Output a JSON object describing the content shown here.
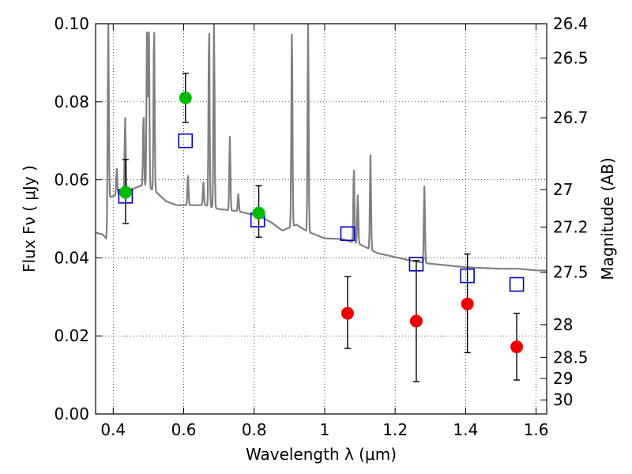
{
  "chart_data": {
    "type": "scatter",
    "xlabel": "Wavelength  λ (μm)",
    "ylabel": "Flux  Fν  ( μJy )",
    "y2label": "Magnitude (AB)",
    "xlim": [
      0.35,
      1.63
    ],
    "ylim": [
      0.0,
      0.1
    ],
    "grid": true,
    "x_ticks": [
      0.4,
      0.6,
      0.8,
      1.0,
      1.2,
      1.4,
      1.6
    ],
    "x_tick_labels": [
      "0.4",
      "0.6",
      "0.8",
      "1",
      "1.2",
      "1.4",
      "1.6"
    ],
    "y_ticks": [
      0.0,
      0.02,
      0.04,
      0.06,
      0.08,
      0.1
    ],
    "y_tick_labels": [
      "0.00",
      "0.02",
      "0.04",
      "0.06",
      "0.08",
      "0.10"
    ],
    "y2_ticks": [
      {
        "label": "26.4",
        "flux": 0.1
      },
      {
        "label": "26.5",
        "flux": 0.0912
      },
      {
        "label": "26.7",
        "flux": 0.0759
      },
      {
        "label": "27",
        "flux": 0.0575
      },
      {
        "label": "27.2",
        "flux": 0.0479
      },
      {
        "label": "27.5",
        "flux": 0.0363
      },
      {
        "label": "28",
        "flux": 0.0229
      },
      {
        "label": "28.5",
        "flux": 0.0145
      },
      {
        "label": "29",
        "flux": 0.0091
      },
      {
        "label": "30",
        "flux": 0.0036
      }
    ],
    "colors": {
      "spectrum": "#808080",
      "model_squares": "#0000cc",
      "green_points": "#00bb00",
      "red_points": "#ee0000",
      "errorbars": "#000000"
    },
    "spectrum": {
      "continuum": [
        [
          0.35,
          0.0465
        ],
        [
          0.37,
          0.046
        ],
        [
          0.38,
          0.045
        ],
        [
          0.39,
          0.0555
        ],
        [
          0.42,
          0.0565
        ],
        [
          0.45,
          0.0575
        ],
        [
          0.48,
          0.0585
        ],
        [
          0.5,
          0.058
        ],
        [
          0.52,
          0.057
        ],
        [
          0.55,
          0.0545
        ],
        [
          0.58,
          0.0535
        ],
        [
          0.6,
          0.0535
        ],
        [
          0.63,
          0.0535
        ],
        [
          0.66,
          0.0535
        ],
        [
          0.7,
          0.0525
        ],
        [
          0.75,
          0.052
        ],
        [
          0.8,
          0.051
        ],
        [
          0.82,
          0.0505
        ],
        [
          0.85,
          0.049
        ],
        [
          0.88,
          0.047
        ],
        [
          0.9,
          0.0478
        ],
        [
          0.92,
          0.0485
        ],
        [
          0.95,
          0.0468
        ],
        [
          1.0,
          0.045
        ],
        [
          1.05,
          0.0448
        ],
        [
          1.1,
          0.0435
        ],
        [
          1.15,
          0.0412
        ],
        [
          1.2,
          0.0402
        ],
        [
          1.25,
          0.0392
        ],
        [
          1.3,
          0.0385
        ],
        [
          1.4,
          0.0376
        ],
        [
          1.5,
          0.0372
        ],
        [
          1.55,
          0.0372
        ],
        [
          1.6,
          0.0368
        ],
        [
          1.63,
          0.0367
        ]
      ],
      "lines": [
        {
          "x": 0.386,
          "peak": 0.1
        },
        {
          "x": 0.41,
          "peak": 0.063
        },
        {
          "x": 0.434,
          "peak": 0.076
        },
        {
          "x": 0.486,
          "peak": 0.077
        },
        {
          "x": 0.496,
          "peak": 0.1
        },
        {
          "x": 0.501,
          "peak": 0.1
        },
        {
          "x": 0.516,
          "peak": 0.1
        },
        {
          "x": 0.612,
          "peak": 0.0615
        },
        {
          "x": 0.656,
          "peak": 0.0595
        },
        {
          "x": 0.672,
          "peak": 0.1
        },
        {
          "x": 0.686,
          "peak": 0.1
        },
        {
          "x": 0.731,
          "peak": 0.0712
        },
        {
          "x": 0.755,
          "peak": 0.0565
        },
        {
          "x": 0.907,
          "peak": 0.1
        },
        {
          "x": 0.953,
          "peak": 0.1
        },
        {
          "x": 1.083,
          "peak": 0.0635
        },
        {
          "x": 1.094,
          "peak": 0.0562
        },
        {
          "x": 1.13,
          "peak": 0.0665
        },
        {
          "x": 1.283,
          "peak": 0.0585
        }
      ]
    },
    "series": [
      {
        "marker": "open-square",
        "points": [
          [
            0.435,
            0.0558
          ],
          [
            0.605,
            0.07
          ],
          [
            0.81,
            0.0497
          ],
          [
            1.065,
            0.0462
          ],
          [
            1.26,
            0.0384
          ],
          [
            1.405,
            0.0354
          ],
          [
            1.545,
            0.0332
          ]
        ]
      },
      {
        "marker": "filled-circle-green",
        "points": [
          {
            "x": 0.435,
            "y": 0.0568,
            "ylow": 0.0488,
            "yhigh": 0.0652
          },
          {
            "x": 0.605,
            "y": 0.081,
            "ylow": 0.0747,
            "yhigh": 0.0873
          },
          {
            "x": 0.813,
            "y": 0.0515,
            "ylow": 0.0453,
            "yhigh": 0.0585
          }
        ]
      },
      {
        "marker": "filled-circle-red",
        "points": [
          {
            "x": 1.065,
            "y": 0.0258,
            "ylow": 0.0168,
            "yhigh": 0.0352
          },
          {
            "x": 1.26,
            "y": 0.0238,
            "ylow": 0.0083,
            "yhigh": 0.0393
          },
          {
            "x": 1.405,
            "y": 0.0282,
            "ylow": 0.0157,
            "yhigh": 0.041
          },
          {
            "x": 1.545,
            "y": 0.0172,
            "ylow": 0.0087,
            "yhigh": 0.0258
          }
        ]
      }
    ]
  }
}
